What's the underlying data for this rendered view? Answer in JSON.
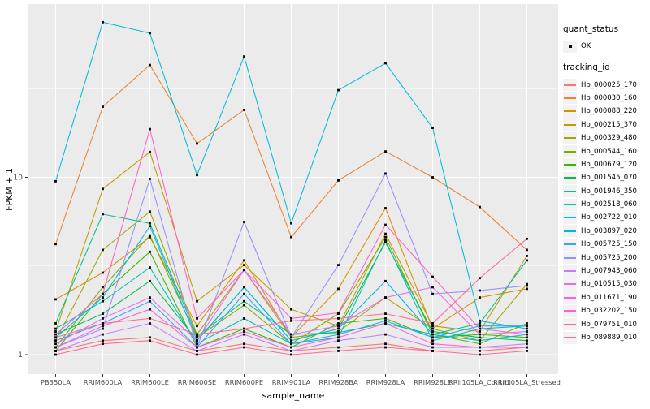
{
  "figure": {
    "y_axis": {
      "title": "FPKM + 1",
      "tick_labels": [
        "1",
        "10"
      ],
      "tick_values": [
        1,
        10
      ]
    },
    "x_axis": {
      "title": "sample_name"
    },
    "legend": {
      "quant_status_title": "quant_status",
      "quant_status_items": [
        "OK"
      ],
      "tracking_id_title": "tracking_id"
    },
    "colors": {
      "panel_background": "#EBEBEB",
      "gridline": "#FFFFFF",
      "tick_text": "#4D4D4D",
      "axis_text": "#000000",
      "point": "#000000",
      "legend_key_background": "#F2F2F2"
    }
  },
  "chart_data": {
    "type": "line",
    "title": "",
    "xlabel": "sample_name",
    "ylabel": "FPKM + 1",
    "y_scale": "log10",
    "ylim": [
      0.78,
      95
    ],
    "grid": "on",
    "legend_position": "right",
    "x": [
      "PB350LA",
      "RRIM600LA",
      "RRIM600LE",
      "RRIM600SE",
      "RRIM600PE",
      "RRIM901LA",
      "RRIM928BA",
      "RRIM928LA",
      "RRIM928LE",
      "RRII105LA_Control",
      "RRII105LA_Stressed"
    ],
    "quant_status": "OK",
    "series": [
      {
        "name": "Hb_000025_170",
        "color": "#F8766D",
        "values": [
          1.05,
          1.2,
          1.25,
          1.05,
          1.15,
          1.05,
          1.1,
          1.15,
          1.05,
          1.05,
          1.1
        ]
      },
      {
        "name": "Hb_000030_160",
        "color": "#EA8331",
        "values": [
          4.2,
          25,
          43,
          15.5,
          24,
          4.6,
          9.6,
          14,
          10,
          6.8,
          3.9
        ]
      },
      {
        "name": "Hb_000088_220",
        "color": "#D89000",
        "values": [
          2.05,
          2.9,
          4.6,
          1.45,
          3.4,
          1.25,
          2.35,
          6.7,
          1.4,
          2.1,
          2.35
        ]
      },
      {
        "name": "Hb_000215_370",
        "color": "#C09B00",
        "values": [
          1.35,
          8.6,
          13.9,
          2.0,
          3.2,
          1.8,
          1.45,
          4.8,
          1.45,
          1.35,
          3.6
        ]
      },
      {
        "name": "Hb_000329_480",
        "color": "#A3A500",
        "values": [
          1.2,
          3.9,
          6.4,
          1.3,
          3.0,
          1.25,
          1.35,
          2.1,
          1.4,
          1.2,
          2.5
        ]
      },
      {
        "name": "Hb_000544_160",
        "color": "#7CAE00",
        "values": [
          1.1,
          2.4,
          4.7,
          1.25,
          1.9,
          1.15,
          1.7,
          4.6,
          1.3,
          1.15,
          1.5
        ]
      },
      {
        "name": "Hb_000679_120",
        "color": "#39B600",
        "values": [
          1.05,
          2.2,
          3.8,
          1.1,
          1.4,
          1.1,
          1.5,
          1.6,
          1.25,
          1.3,
          1.25
        ]
      },
      {
        "name": "Hb_001545_070",
        "color": "#00BB4E",
        "values": [
          1.3,
          1.7,
          2.6,
          1.2,
          2.4,
          1.2,
          1.4,
          4.3,
          1.35,
          1.25,
          1.2
        ]
      },
      {
        "name": "Hb_001946_350",
        "color": "#00C087",
        "values": [
          1.5,
          6.2,
          5.5,
          1.27,
          2.0,
          1.3,
          1.33,
          1.5,
          1.3,
          1.5,
          3.4
        ]
      },
      {
        "name": "Hb_002518_060",
        "color": "#00C0B2",
        "values": [
          1.4,
          2.0,
          3.1,
          1.15,
          1.6,
          1.15,
          1.25,
          4.4,
          1.2,
          1.4,
          1.45
        ]
      },
      {
        "name": "Hb_002722_010",
        "color": "#00BDD4",
        "values": [
          9.5,
          75,
          65,
          10.3,
          48,
          5.5,
          31,
          44,
          19,
          1.55,
          1.4
        ]
      },
      {
        "name": "Hb_003897_020",
        "color": "#00B4EF",
        "values": [
          1.25,
          2.1,
          5.3,
          1.2,
          2.4,
          1.2,
          1.4,
          2.6,
          1.3,
          1.2,
          1.3
        ]
      },
      {
        "name": "Hb_005725_150",
        "color": "#35A2FF",
        "values": [
          1.2,
          1.5,
          2.0,
          1.1,
          2.2,
          1.15,
          1.3,
          1.55,
          1.25,
          1.45,
          1.45
        ]
      },
      {
        "name": "Hb_005725_200",
        "color": "#9590FF",
        "values": [
          1.1,
          1.4,
          9.8,
          1.1,
          5.6,
          1.25,
          3.2,
          10.5,
          2.2,
          2.3,
          2.45
        ]
      },
      {
        "name": "Hb_007943_060",
        "color": "#C77CFF",
        "values": [
          1.05,
          1.3,
          1.5,
          1.05,
          1.3,
          1.05,
          1.2,
          1.3,
          1.1,
          1.1,
          1.15
        ]
      },
      {
        "name": "Hb_010515_030",
        "color": "#E76BF3",
        "values": [
          1.15,
          1.6,
          2.1,
          1.2,
          3.0,
          1.3,
          1.45,
          2.1,
          2.4,
          1.3,
          1.35
        ]
      },
      {
        "name": "Hb_011671_190",
        "color": "#FA62DB",
        "values": [
          1.1,
          1.45,
          1.8,
          1.1,
          1.35,
          1.1,
          1.25,
          1.5,
          1.15,
          1.1,
          1.1
        ]
      },
      {
        "name": "Hb_032202_150",
        "color": "#FF61C9",
        "values": [
          1.3,
          2.2,
          18.7,
          1.6,
          3.0,
          1.6,
          1.72,
          5.4,
          2.75,
          1.4,
          1.3
        ]
      },
      {
        "name": "Hb_079751_010",
        "color": "#FF6A98",
        "values": [
          1.0,
          1.15,
          1.2,
          1.0,
          1.1,
          1.0,
          1.05,
          1.1,
          1.05,
          1.0,
          1.05
        ]
      },
      {
        "name": "Hb_089889_010",
        "color": "#FF6C92",
        "values": [
          1.25,
          1.5,
          1.6,
          1.3,
          1.4,
          1.55,
          1.6,
          1.7,
          1.5,
          2.7,
          4.5
        ]
      }
    ]
  }
}
